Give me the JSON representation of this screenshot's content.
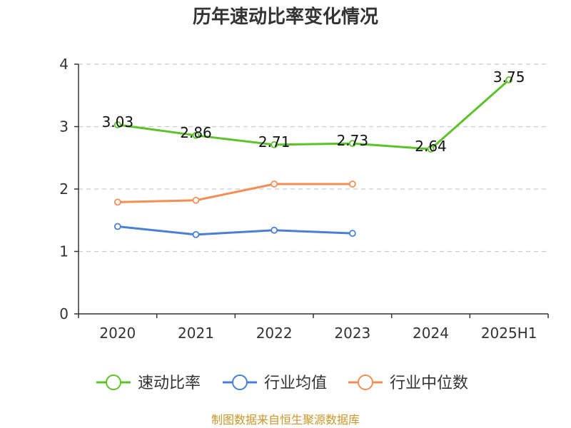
{
  "chart_data": {
    "type": "line",
    "title": "历年速动比率变化情况",
    "categories": [
      "2020",
      "2021",
      "2022",
      "2023",
      "2024",
      "2025H1"
    ],
    "ylim": [
      0,
      4
    ],
    "yticks": [
      "0",
      "1",
      "2",
      "3",
      "4"
    ],
    "grid": true,
    "legend_position": "bottom",
    "series": [
      {
        "name": "速动比率",
        "color": "#5dc22a",
        "values": [
          3.03,
          2.86,
          2.71,
          2.73,
          2.64,
          3.75
        ],
        "labels": [
          "3.03",
          "2.86",
          "2.71",
          "2.73",
          "2.64",
          "3.75"
        ]
      },
      {
        "name": "行业均值",
        "color": "#4a7fd6",
        "values": [
          1.4,
          1.27,
          1.34,
          1.29,
          null,
          null
        ]
      },
      {
        "name": "行业中位数",
        "color": "#f58d55",
        "values": [
          1.79,
          1.82,
          2.08,
          2.08,
          null,
          null
        ]
      }
    ]
  },
  "source": "制图数据来自恒生聚源数据库"
}
